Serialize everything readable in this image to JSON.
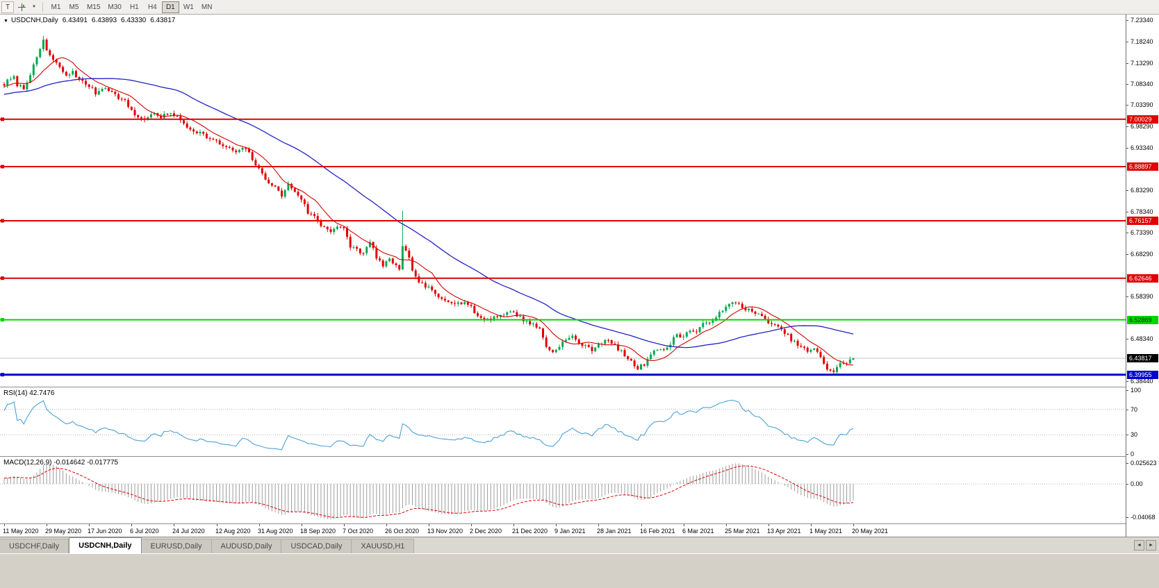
{
  "toolbar": {
    "chart_button": "T",
    "cursor_icon": "crosshair-icon",
    "dropdown_glyph": "▼",
    "timeframes": [
      "M1",
      "M5",
      "M15",
      "M30",
      "H1",
      "H4",
      "D1",
      "W1",
      "MN"
    ],
    "active_timeframe": "D1"
  },
  "quote_header": {
    "collapse_icon": "▼",
    "symbol": "USDCNH,Daily",
    "open": "6.43491",
    "high": "6.43893",
    "low": "6.43330",
    "close": "6.43817"
  },
  "price_axis_labels": [
    "7.23340",
    "7.18240",
    "7.13290",
    "7.08340",
    "7.03390",
    "6.98290",
    "6.93340",
    "6.83290",
    "6.78340",
    "6.73390",
    "6.68290",
    "6.58390",
    "6.48340",
    "6.38440"
  ],
  "rsi_panel": {
    "label": "RSI(14) 42.7476",
    "axis": [
      {
        "text": "100",
        "value": 100
      },
      {
        "text": "70",
        "value": 70
      },
      {
        "text": "30",
        "value": 30
      },
      {
        "text": "0",
        "value": 0
      }
    ]
  },
  "macd_panel": {
    "label": "MACD(12,26,9) -0.014642 -0.017775",
    "axis": [
      {
        "text": "0.025623",
        "value": 0.025623
      },
      {
        "text": "0.00",
        "value": 0
      },
      {
        "text": "-0.04068",
        "value": -0.04068
      }
    ]
  },
  "date_labels": [
    {
      "text": "11 May 2020",
      "day": 0
    },
    {
      "text": "29 May 2020",
      "day": 13
    },
    {
      "text": "17 Jun 2020",
      "day": 26
    },
    {
      "text": "6 Jul 2020",
      "day": 39
    },
    {
      "text": "24 Jul 2020",
      "day": 52
    },
    {
      "text": "12 Aug 2020",
      "day": 65
    },
    {
      "text": "31 Aug 2020",
      "day": 78
    },
    {
      "text": "18 Sep 2020",
      "day": 91
    },
    {
      "text": "7 Oct 2020",
      "day": 104
    },
    {
      "text": "26 Oct 2020",
      "day": 117
    },
    {
      "text": "13 Nov 2020",
      "day": 130
    },
    {
      "text": "2 Dec 2020",
      "day": 143
    },
    {
      "text": "21 Dec 2020",
      "day": 156
    },
    {
      "text": "9 Jan 2021",
      "day": 169
    },
    {
      "text": "28 Jan 2021",
      "day": 182
    },
    {
      "text": "16 Feb 2021",
      "day": 195
    },
    {
      "text": "6 Mar 2021",
      "day": 208
    },
    {
      "text": "25 Mar 2021",
      "day": 221
    },
    {
      "text": "13 Apr 2021",
      "day": 234
    },
    {
      "text": "1 May 2021",
      "day": 247
    },
    {
      "text": "20 May 2021",
      "day": 260
    }
  ],
  "tabs": [
    {
      "label": "USDCHF,Daily",
      "active": false
    },
    {
      "label": "USDCNH,Daily",
      "active": true
    },
    {
      "label": "EURUSD,Daily",
      "active": false
    },
    {
      "label": "AUDUSD,Daily",
      "active": false
    },
    {
      "label": "USDCAD,Daily",
      "active": false
    },
    {
      "label": "XAUUSD,H1",
      "active": false
    }
  ],
  "tab_scroll": {
    "left": "◄",
    "right": "►"
  },
  "chart_data": {
    "type": "candlestick",
    "symbol": "USDCNH",
    "period": "Daily",
    "ohlc_current": {
      "open": 6.43491,
      "high": 6.43893,
      "low": 6.4333,
      "close": 6.43817
    },
    "y_range": {
      "min": 6.3762,
      "max": 7.2416
    },
    "days_total": 261,
    "up_color": "#00a94f",
    "down_color": "#e00000",
    "horizontal_lines": [
      {
        "value": 7.00029,
        "label": "7.00029",
        "color": "#e00000",
        "line_width": 2,
        "text_color": "#ffffff"
      },
      {
        "value": 6.88897,
        "label": "6.88897",
        "color": "#e00000",
        "line_width": 2,
        "text_color": "#ffffff"
      },
      {
        "value": 6.76157,
        "label": "6.76157",
        "color": "#e00000",
        "line_width": 2,
        "text_color": "#ffffff"
      },
      {
        "value": 6.62646,
        "label": "6.62646",
        "color": "#e00000",
        "line_width": 2,
        "text_color": "#ffffff"
      },
      {
        "value": 6.52869,
        "label": "6.52869",
        "color": "#00d400",
        "line_width": 2,
        "text_color": "#003300"
      },
      {
        "value": 6.39955,
        "label": "6.39955",
        "color": "#0000cd",
        "line_width": 3,
        "text_color": "#ffffff"
      }
    ],
    "bid_line": {
      "value": 6.43817,
      "label": "6.43817",
      "color": "#c0c0c0",
      "badge_bg": "#000000",
      "text_color": "#ffffff"
    },
    "ma_fast": {
      "period": 10,
      "color": "#d40000"
    },
    "ma_slow": {
      "period": 45,
      "color": "#2222c4"
    },
    "rsi": {
      "period": 14,
      "current": 42.7476,
      "color": "#4aa0d8",
      "levels": [
        70,
        30
      ],
      "range": [
        0,
        100
      ]
    },
    "macd": {
      "fast": 12,
      "slow": 26,
      "signal": 9,
      "macd_value": -0.014642,
      "signal_value": -0.017775,
      "hist_color": "#9c9c9c",
      "signal_color": "#e00000",
      "range": [
        -0.0455,
        0.0295
      ]
    },
    "seed": 7,
    "spikes": [
      [
        12,
        7.1965,
        "high"
      ],
      [
        43,
        6.993,
        "low"
      ],
      [
        122,
        6.785,
        "high"
      ],
      [
        254,
        6.4005,
        "low"
      ]
    ],
    "price_waypoints": [
      [
        0,
        7.082
      ],
      [
        1,
        7.09
      ],
      [
        3,
        7.098
      ],
      [
        4,
        7.082
      ],
      [
        6,
        7.072
      ],
      [
        8,
        7.108
      ],
      [
        10,
        7.142
      ],
      [
        12,
        7.188
      ],
      [
        13,
        7.162
      ],
      [
        15,
        7.138
      ],
      [
        17,
        7.124
      ],
      [
        19,
        7.1
      ],
      [
        21,
        7.114
      ],
      [
        23,
        7.092
      ],
      [
        26,
        7.079
      ],
      [
        28,
        7.062
      ],
      [
        31,
        7.077
      ],
      [
        34,
        7.057
      ],
      [
        37,
        7.042
      ],
      [
        40,
        7.011
      ],
      [
        43,
        6.998
      ],
      [
        45,
        7.015
      ],
      [
        48,
        7.004
      ],
      [
        51,
        7.017
      ],
      [
        54,
        6.997
      ],
      [
        57,
        6.977
      ],
      [
        60,
        6.969
      ],
      [
        63,
        6.954
      ],
      [
        65,
        6.947
      ],
      [
        68,
        6.934
      ],
      [
        71,
        6.923
      ],
      [
        74,
        6.932
      ],
      [
        76,
        6.907
      ],
      [
        78,
        6.881
      ],
      [
        80,
        6.861
      ],
      [
        83,
        6.839
      ],
      [
        85,
        6.821
      ],
      [
        87,
        6.846
      ],
      [
        89,
        6.831
      ],
      [
        91,
        6.814
      ],
      [
        93,
        6.781
      ],
      [
        95,
        6.771
      ],
      [
        97,
        6.751
      ],
      [
        100,
        6.739
      ],
      [
        102,
        6.748
      ],
      [
        104,
        6.741
      ],
      [
        106,
        6.701
      ],
      [
        108,
        6.695
      ],
      [
        110,
        6.683
      ],
      [
        112,
        6.711
      ],
      [
        114,
        6.677
      ],
      [
        116,
        6.655
      ],
      [
        118,
        6.669
      ],
      [
        120,
        6.659
      ],
      [
        121,
        6.644
      ],
      [
        122,
        6.699
      ],
      [
        123,
        6.687
      ],
      [
        124,
        6.671
      ],
      [
        126,
        6.627
      ],
      [
        128,
        6.611
      ],
      [
        130,
        6.603
      ],
      [
        133,
        6.581
      ],
      [
        136,
        6.575
      ],
      [
        139,
        6.567
      ],
      [
        141,
        6.571
      ],
      [
        143,
        6.557
      ],
      [
        145,
        6.537
      ],
      [
        147,
        6.529
      ],
      [
        150,
        6.535
      ],
      [
        153,
        6.543
      ],
      [
        156,
        6.547
      ],
      [
        158,
        6.533
      ],
      [
        161,
        6.521
      ],
      [
        164,
        6.507
      ],
      [
        166,
        6.467
      ],
      [
        168,
        6.451
      ],
      [
        170,
        6.469
      ],
      [
        172,
        6.481
      ],
      [
        174,
        6.489
      ],
      [
        176,
        6.475
      ],
      [
        178,
        6.465
      ],
      [
        180,
        6.459
      ],
      [
        182,
        6.471
      ],
      [
        184,
        6.481
      ],
      [
        186,
        6.473
      ],
      [
        188,
        6.461
      ],
      [
        190,
        6.445
      ],
      [
        192,
        6.429
      ],
      [
        194,
        6.415
      ],
      [
        196,
        6.424
      ],
      [
        198,
        6.451
      ],
      [
        200,
        6.461
      ],
      [
        202,
        6.454
      ],
      [
        204,
        6.474
      ],
      [
        206,
        6.495
      ],
      [
        208,
        6.489
      ],
      [
        210,
        6.505
      ],
      [
        212,
        6.499
      ],
      [
        214,
        6.517
      ],
      [
        216,
        6.525
      ],
      [
        218,
        6.537
      ],
      [
        220,
        6.549
      ],
      [
        222,
        6.564
      ],
      [
        224,
        6.571
      ],
      [
        226,
        6.559
      ],
      [
        228,
        6.551
      ],
      [
        230,
        6.544
      ],
      [
        232,
        6.535
      ],
      [
        234,
        6.525
      ],
      [
        236,
        6.514
      ],
      [
        238,
        6.504
      ],
      [
        240,
        6.491
      ],
      [
        242,
        6.475
      ],
      [
        244,
        6.465
      ],
      [
        246,
        6.454
      ],
      [
        248,
        6.459
      ],
      [
        250,
        6.441
      ],
      [
        252,
        6.414
      ],
      [
        254,
        6.407
      ],
      [
        256,
        6.424
      ],
      [
        258,
        6.429
      ],
      [
        260,
        6.438
      ]
    ]
  }
}
